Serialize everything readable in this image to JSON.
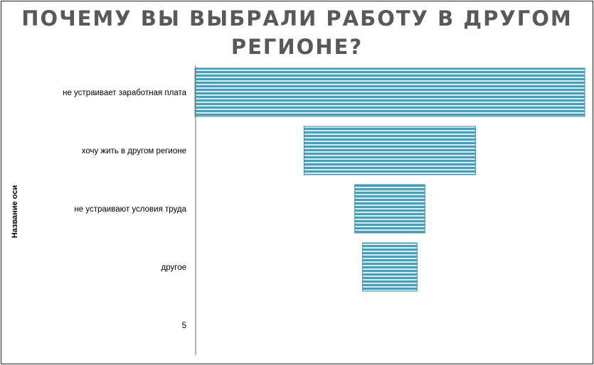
{
  "chart_data": {
    "type": "bar",
    "orientation": "horizontal-funnel",
    "title_lines": [
      "ПОЧЕМУ ВЫ ВЫБРАЛИ РАБОТУ В ДРУГОМ",
      "РЕГИОНЕ?"
    ],
    "ylabel": "Название оси",
    "categories": [
      "не устраивает заработная плата",
      "хочу жить в другом регионе",
      "не устраивают условия труда",
      "другое",
      "5"
    ],
    "values": [
      100,
      44,
      18,
      14,
      0
    ],
    "bar_color": "#4a9fb8",
    "stripe_color": "#d6edf3",
    "grid": false,
    "legend": "none"
  }
}
